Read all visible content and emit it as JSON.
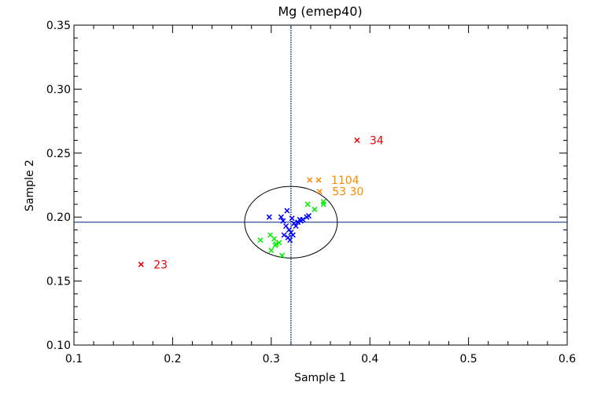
{
  "chart_data": {
    "type": "scatter",
    "title": "Mg (emep40)",
    "xlabel": "Sample 1",
    "ylabel": "Sample 2",
    "xlim": [
      0.1,
      0.6
    ],
    "ylim": [
      0.1,
      0.35
    ],
    "x_ticks": [
      "0.1",
      "0.2",
      "0.3",
      "0.4",
      "0.5",
      "0.6"
    ],
    "y_ticks": [
      "0.10",
      "0.15",
      "0.20",
      "0.25",
      "0.30",
      "0.35"
    ],
    "x_tick_values": [
      0.1,
      0.2,
      0.3,
      0.4,
      0.5,
      0.6
    ],
    "y_tick_values": [
      0.1,
      0.15,
      0.2,
      0.25,
      0.3,
      0.35
    ],
    "reference_lines": {
      "x": 0.32,
      "y": 0.196
    },
    "ellipse": {
      "cx": 0.32,
      "cy": 0.196,
      "rx": 0.047,
      "ry": 0.028
    },
    "colors": {
      "blue": "#0000ff",
      "green": "#00ee00",
      "orange": "#ff8800",
      "red": "#ee0000",
      "axis": "#000000",
      "line": "#1a3d8f"
    },
    "series": [
      {
        "color": "#0000ff",
        "points": [
          [
            0.298,
            0.2
          ],
          [
            0.31,
            0.2
          ],
          [
            0.316,
            0.205
          ],
          [
            0.312,
            0.197
          ],
          [
            0.315,
            0.193
          ],
          [
            0.318,
            0.19
          ],
          [
            0.32,
            0.188
          ],
          [
            0.313,
            0.186
          ],
          [
            0.317,
            0.184
          ],
          [
            0.322,
            0.186
          ],
          [
            0.319,
            0.182
          ],
          [
            0.325,
            0.193
          ],
          [
            0.327,
            0.196
          ],
          [
            0.33,
            0.197
          ],
          [
            0.332,
            0.198
          ],
          [
            0.336,
            0.2
          ],
          [
            0.338,
            0.201
          ],
          [
            0.329,
            0.198
          ],
          [
            0.323,
            0.195
          ],
          [
            0.321,
            0.199
          ]
        ]
      },
      {
        "color": "#00ee00",
        "points": [
          [
            0.289,
            0.182
          ],
          [
            0.299,
            0.186
          ],
          [
            0.303,
            0.183
          ],
          [
            0.3,
            0.174
          ],
          [
            0.304,
            0.178
          ],
          [
            0.308,
            0.18
          ],
          [
            0.311,
            0.17
          ],
          [
            0.337,
            0.21
          ],
          [
            0.344,
            0.206
          ],
          [
            0.353,
            0.212
          ],
          [
            0.353,
            0.21
          ],
          [
            0.305,
            0.179
          ]
        ]
      },
      {
        "color": "#ff8800",
        "points": [
          {
            "x": 0.339,
            "y": 0.229,
            "label": ""
          },
          {
            "x": 0.348,
            "y": 0.229,
            "label": "1104"
          },
          {
            "x": 0.349,
            "y": 0.22,
            "label": "53 30"
          }
        ]
      },
      {
        "color": "#ee0000",
        "points": [
          {
            "x": 0.387,
            "y": 0.26,
            "label": "34"
          },
          {
            "x": 0.168,
            "y": 0.163,
            "label": "23"
          }
        ]
      }
    ]
  }
}
